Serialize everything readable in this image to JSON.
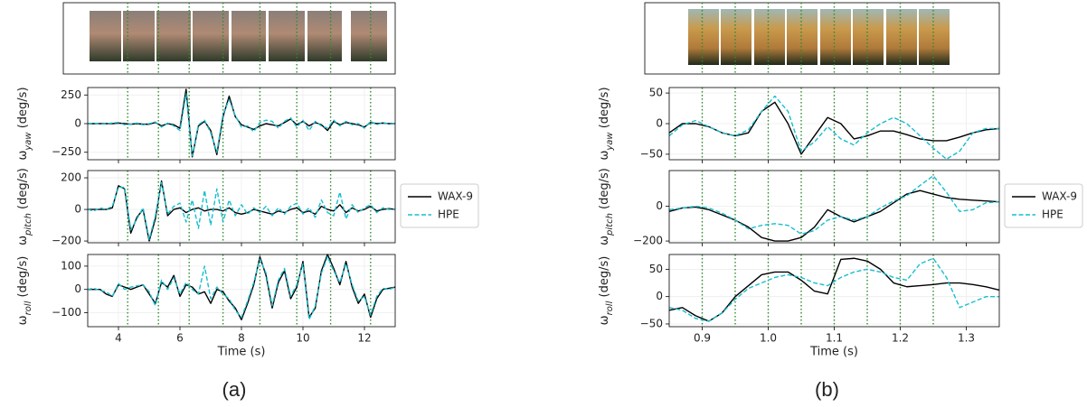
{
  "chart_data": [
    {
      "type": "line",
      "title": "(a)",
      "xlabel": "Time (s)",
      "xlim": [
        3,
        13
      ],
      "xticks": [
        4,
        6,
        8,
        10,
        12
      ],
      "grid": true,
      "legend": "right",
      "vlines": [
        4.3,
        5.3,
        6.3,
        7.4,
        8.6,
        9.8,
        10.9,
        12.2
      ],
      "vline_color": "#2e8b2e",
      "x": [
        3.0,
        3.2,
        3.4,
        3.6,
        3.8,
        4.0,
        4.2,
        4.4,
        4.6,
        4.8,
        5.0,
        5.2,
        5.4,
        5.6,
        5.8,
        6.0,
        6.2,
        6.4,
        6.6,
        6.8,
        7.0,
        7.2,
        7.4,
        7.6,
        7.8,
        8.0,
        8.2,
        8.4,
        8.6,
        8.8,
        9.0,
        9.2,
        9.4,
        9.6,
        9.8,
        10.0,
        10.2,
        10.4,
        10.6,
        10.8,
        11.0,
        11.2,
        11.4,
        11.6,
        11.8,
        12.0,
        12.2,
        12.4,
        12.6,
        12.8,
        13.0
      ],
      "panels": [
        {
          "ylabel": {
            "symbol": "ω",
            "sub": "yaw",
            "unit": " (deg/s)"
          },
          "ylim": [
            -315,
            315
          ],
          "yticks": [
            {
              "value": -250,
              "label": "−250"
            },
            0,
            250
          ],
          "series": [
            {
              "name": "WAX-9",
              "color": "#000000",
              "linestyle": "solid",
              "values": [
                0,
                0,
                0,
                0,
                0,
                5,
                0,
                -5,
                0,
                -5,
                -5,
                10,
                -20,
                0,
                -10,
                -40,
                300,
                -290,
                -20,
                20,
                -60,
                -270,
                60,
                240,
                60,
                -10,
                -30,
                -50,
                -20,
                0,
                -10,
                -20,
                10,
                40,
                -10,
                20,
                -20,
                10,
                -10,
                -60,
                20,
                -10,
                10,
                0,
                -10,
                -30,
                10,
                0,
                5,
                0,
                0
              ]
            },
            {
              "name": "HPE",
              "color": "#17becf",
              "linestyle": "dashed",
              "values": [
                0,
                5,
                -5,
                0,
                5,
                10,
                -10,
                -5,
                5,
                -10,
                0,
                15,
                -30,
                5,
                -20,
                -60,
                260,
                -280,
                -10,
                30,
                -80,
                -250,
                80,
                210,
                70,
                -30,
                -20,
                -70,
                10,
                30,
                20,
                -40,
                20,
                50,
                -30,
                30,
                -60,
                20,
                -20,
                -40,
                30,
                -20,
                20,
                -10,
                0,
                -40,
                20,
                -10,
                10,
                -5,
                0
              ]
            }
          ]
        },
        {
          "ylabel": {
            "symbol": "ω",
            "sub": "pitch",
            "unit": " (deg/s)"
          },
          "ylim": [
            -211,
            246
          ],
          "yticks": [
            {
              "value": -200,
              "label": "−200"
            },
            0,
            200
          ],
          "series": [
            {
              "name": "WAX-9",
              "color": "#000000",
              "linestyle": "solid",
              "values": [
                0,
                0,
                0,
                0,
                10,
                150,
                130,
                -150,
                -50,
                0,
                -200,
                -60,
                180,
                -40,
                0,
                10,
                -20,
                0,
                10,
                -10,
                0,
                0,
                -10,
                10,
                -20,
                -30,
                -20,
                0,
                -10,
                -20,
                -30,
                -10,
                -20,
                0,
                10,
                -20,
                -10,
                -30,
                20,
                0,
                -10,
                30,
                -20,
                10,
                -10,
                0,
                20,
                -10,
                0,
                5,
                0
              ]
            },
            {
              "name": "HPE",
              "color": "#17becf",
              "linestyle": "dashed",
              "values": [
                0,
                -10,
                10,
                0,
                20,
                140,
                140,
                -130,
                -60,
                10,
                -190,
                -40,
                170,
                -30,
                20,
                40,
                -80,
                60,
                -120,
                120,
                -100,
                130,
                -80,
                60,
                -40,
                30,
                -30,
                10,
                -20,
                20,
                -40,
                10,
                -30,
                20,
                40,
                -30,
                10,
                -50,
                60,
                -20,
                -40,
                110,
                -60,
                30,
                -20,
                10,
                30,
                -20,
                10,
                0,
                0
              ]
            }
          ]
        },
        {
          "ylabel": {
            "symbol": "ω",
            "sub": "roll",
            "unit": " (deg/s)"
          },
          "ylim": [
            -160,
            150
          ],
          "yticks": [
            {
              "value": -100,
              "label": "−100"
            },
            0,
            100
          ],
          "series": [
            {
              "name": "WAX-9",
              "color": "#000000",
              "linestyle": "solid",
              "values": [
                0,
                0,
                0,
                -20,
                -30,
                20,
                10,
                0,
                10,
                20,
                -20,
                -60,
                30,
                10,
                60,
                -30,
                20,
                10,
                -20,
                -10,
                -60,
                0,
                -10,
                -50,
                -80,
                -130,
                -60,
                20,
                140,
                60,
                -80,
                30,
                80,
                -40,
                10,
                120,
                -120,
                -80,
                80,
                150,
                90,
                20,
                120,
                10,
                -60,
                -20,
                -120,
                -40,
                0,
                5,
                10
              ]
            },
            {
              "name": "HPE",
              "color": "#17becf",
              "linestyle": "dashed",
              "values": [
                0,
                5,
                -5,
                -10,
                -30,
                25,
                0,
                10,
                15,
                20,
                -10,
                -70,
                40,
                0,
                50,
                -20,
                30,
                0,
                -20,
                100,
                -40,
                10,
                -20,
                -40,
                -90,
                -120,
                -50,
                30,
                130,
                70,
                -70,
                40,
                90,
                -30,
                20,
                110,
                -130,
                -70,
                70,
                140,
                80,
                30,
                110,
                20,
                -50,
                -30,
                -110,
                -30,
                5,
                0,
                10
              ]
            }
          ]
        }
      ]
    },
    {
      "type": "line",
      "title": "(b)",
      "xlabel": "Time (s)",
      "xlim": [
        0.85,
        1.35
      ],
      "xticks": [
        0.9,
        {
          "value": 1,
          "label": "1.0"
        },
        1.1,
        1.2,
        1.3
      ],
      "grid": true,
      "legend": "right",
      "vlines": [
        0.9,
        0.95,
        1.0,
        1.05,
        1.1,
        1.15,
        1.2,
        1.25
      ],
      "vline_color": "#2e8b2e",
      "x": [
        0.85,
        0.87,
        0.89,
        0.91,
        0.93,
        0.95,
        0.97,
        0.99,
        1.01,
        1.03,
        1.05,
        1.07,
        1.09,
        1.11,
        1.13,
        1.15,
        1.17,
        1.19,
        1.21,
        1.23,
        1.25,
        1.27,
        1.29,
        1.31,
        1.33,
        1.35
      ],
      "panels": [
        {
          "ylabel": {
            "symbol": "ω",
            "sub": "yaw",
            "unit": " (deg/s)"
          },
          "ylim": [
            -59,
            59
          ],
          "yticks": [
            {
              "value": -50,
              "label": "−50"
            },
            0,
            50
          ],
          "series": [
            {
              "name": "WAX-9",
              "color": "#000000",
              "linestyle": "solid",
              "values": [
                -15,
                0,
                0,
                -5,
                -15,
                -20,
                -15,
                20,
                35,
                0,
                -50,
                -20,
                10,
                0,
                -25,
                -20,
                -12,
                -12,
                -18,
                -25,
                -28,
                -28,
                -22,
                -15,
                -10,
                -8
              ]
            },
            {
              "name": "HPE",
              "color": "#17becf",
              "linestyle": "dashed",
              "values": [
                -20,
                -2,
                5,
                -5,
                -15,
                -20,
                -10,
                20,
                45,
                20,
                -45,
                -30,
                -5,
                -25,
                -35,
                -15,
                0,
                10,
                0,
                -20,
                -40,
                -58,
                -45,
                -15,
                -8,
                -8
              ]
            }
          ]
        },
        {
          "ylabel": {
            "symbol": "ω",
            "sub": "pitch",
            "unit": " (deg/s)"
          },
          "ylim": [
            -210,
            205
          ],
          "yticks": [
            {
              "value": -200,
              "label": "−200"
            },
            0
          ],
          "series": [
            {
              "name": "WAX-9",
              "color": "#000000",
              "linestyle": "solid",
              "values": [
                -30,
                -10,
                -5,
                -20,
                -50,
                -80,
                -120,
                -180,
                -200,
                -200,
                -180,
                -120,
                -20,
                -60,
                -90,
                -60,
                -30,
                20,
                70,
                90,
                70,
                50,
                40,
                35,
                30,
                25
              ]
            },
            {
              "name": "HPE",
              "color": "#17becf",
              "linestyle": "dashed",
              "values": [
                -20,
                -10,
                0,
                -10,
                -40,
                -80,
                -130,
                -110,
                -100,
                -110,
                -160,
                -140,
                -80,
                -60,
                -80,
                -60,
                -10,
                30,
                60,
                120,
                175,
                80,
                -30,
                -20,
                20,
                25
              ]
            }
          ]
        },
        {
          "ylabel": {
            "symbol": "ω",
            "sub": "roll",
            "unit": " (deg/s)"
          },
          "ylim": [
            -55,
            77
          ],
          "yticks": [
            {
              "value": -50,
              "label": "−50"
            },
            0,
            50
          ],
          "series": [
            {
              "name": "WAX-9",
              "color": "#000000",
              "linestyle": "solid",
              "values": [
                -25,
                -20,
                -35,
                -45,
                -30,
                0,
                20,
                40,
                45,
                45,
                30,
                10,
                5,
                68,
                70,
                65,
                50,
                25,
                18,
                20,
                22,
                25,
                25,
                22,
                18,
                12
              ]
            },
            {
              "name": "HPE",
              "color": "#17becf",
              "linestyle": "dashed",
              "values": [
                -20,
                -25,
                -40,
                -45,
                -30,
                -5,
                15,
                25,
                35,
                40,
                35,
                25,
                20,
                35,
                45,
                50,
                45,
                35,
                30,
                60,
                70,
                35,
                -20,
                -10,
                0,
                0
              ]
            }
          ]
        }
      ]
    }
  ]
}
